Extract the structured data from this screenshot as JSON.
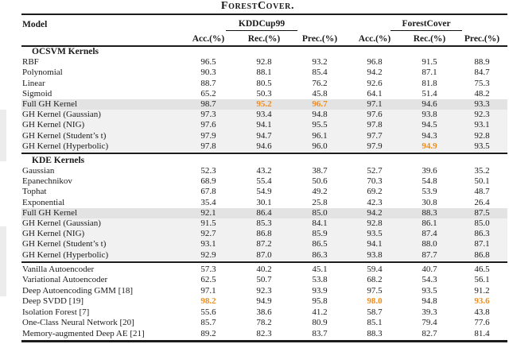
{
  "caption": "ForestCover.",
  "accent_orange": "#ef8c1d",
  "shade_dark": "#e3e3e3",
  "shade_light": "#f1f1f1",
  "table": {
    "model_header": "Model",
    "groups": [
      {
        "label": "KDDCup99"
      },
      {
        "label": "ForestCover"
      }
    ],
    "subheaders": [
      "Acc.(%)",
      "Rec.(%)",
      "Prec.(%)",
      "Acc.(%)",
      "Rec.(%)",
      "Prec.(%)"
    ],
    "sections": [
      {
        "title": "OCSVM Kernels",
        "rows": [
          {
            "model": "RBF",
            "values": [
              "96.5",
              "92.8",
              "93.2",
              "96.8",
              "91.5",
              "88.9"
            ],
            "shade": "none",
            "orange": []
          },
          {
            "model": "Polynomial",
            "values": [
              "90.3",
              "88.1",
              "85.4",
              "94.2",
              "87.1",
              "84.7"
            ],
            "shade": "none",
            "orange": []
          },
          {
            "model": "Linear",
            "values": [
              "88.7",
              "80.5",
              "76.2",
              "92.6",
              "81.8",
              "75.3"
            ],
            "shade": "none",
            "orange": []
          },
          {
            "model": "Sigmoid",
            "values": [
              "65.2",
              "50.3",
              "45.8",
              "64.1",
              "51.4",
              "48.2"
            ],
            "shade": "none",
            "orange": []
          },
          {
            "model": "Full GH Kernel",
            "values": [
              "98.7",
              "95.2",
              "96.7",
              "97.1",
              "94.6",
              "93.3"
            ],
            "shade": "dark",
            "orange": [
              1,
              2
            ]
          },
          {
            "model": "GH Kernel (Gaussian)",
            "values": [
              "97.3",
              "93.4",
              "94.8",
              "97.6",
              "93.8",
              "92.3"
            ],
            "shade": "light",
            "orange": []
          },
          {
            "model": "GH Kernel (NIG)",
            "values": [
              "97.6",
              "94.1",
              "95.5",
              "97.8",
              "94.5",
              "93.1"
            ],
            "shade": "light",
            "orange": []
          },
          {
            "model": "GH Kernel (Student’s t)",
            "values": [
              "97.9",
              "94.7",
              "96.1",
              "97.7",
              "94.3",
              "92.8"
            ],
            "shade": "light",
            "orange": []
          },
          {
            "model": "GH Kernel (Hyperbolic)",
            "values": [
              "97.8",
              "94.6",
              "96.0",
              "97.9",
              "94.9",
              "93.5"
            ],
            "shade": "light",
            "orange": [
              4
            ]
          }
        ]
      },
      {
        "title": "KDE Kernels",
        "rows": [
          {
            "model": "Gaussian",
            "values": [
              "52.3",
              "43.2",
              "38.7",
              "52.7",
              "39.6",
              "35.2"
            ],
            "shade": "none",
            "orange": []
          },
          {
            "model": "Epanechnikov",
            "values": [
              "68.9",
              "55.4",
              "50.6",
              "70.3",
              "54.8",
              "50.1"
            ],
            "shade": "none",
            "orange": []
          },
          {
            "model": "Tophat",
            "values": [
              "67.8",
              "54.9",
              "49.2",
              "69.2",
              "53.9",
              "48.7"
            ],
            "shade": "none",
            "orange": []
          },
          {
            "model": "Exponential",
            "values": [
              "35.4",
              "30.1",
              "25.8",
              "42.3",
              "30.8",
              "26.4"
            ],
            "shade": "none",
            "orange": []
          },
          {
            "model": "Full GH Kernel",
            "values": [
              "92.1",
              "86.4",
              "85.0",
              "94.2",
              "88.3",
              "87.5"
            ],
            "shade": "dark",
            "orange": []
          },
          {
            "model": "GH Kernel (Gaussian)",
            "values": [
              "91.5",
              "85.3",
              "84.1",
              "92.8",
              "86.1",
              "85.0"
            ],
            "shade": "light",
            "orange": []
          },
          {
            "model": "GH Kernel (NIG)",
            "values": [
              "92.7",
              "86.8",
              "85.9",
              "93.5",
              "87.4",
              "86.3"
            ],
            "shade": "light",
            "orange": []
          },
          {
            "model": "GH Kernel (Student’s t)",
            "values": [
              "93.1",
              "87.2",
              "86.5",
              "94.1",
              "88.0",
              "87.1"
            ],
            "shade": "light",
            "orange": []
          },
          {
            "model": "GH Kernel (Hyperbolic)",
            "values": [
              "92.9",
              "87.0",
              "86.3",
              "93.8",
              "87.7",
              "86.8"
            ],
            "shade": "light",
            "orange": []
          }
        ]
      },
      {
        "title": null,
        "rows": [
          {
            "model": "Vanilla Autoencoder",
            "values": [
              "57.3",
              "40.2",
              "45.1",
              "59.4",
              "40.7",
              "46.5"
            ],
            "shade": "none",
            "orange": []
          },
          {
            "model": "Variational Autoencoder",
            "values": [
              "62.5",
              "50.7",
              "53.8",
              "68.2",
              "54.3",
              "56.1"
            ],
            "shade": "none",
            "orange": []
          },
          {
            "model": "Deep Autoencoding GMM [18]",
            "values": [
              "97.1",
              "92.3",
              "93.9",
              "97.5",
              "93.5",
              "91.2"
            ],
            "shade": "none",
            "orange": []
          },
          {
            "model": "Deep SVDD [19]",
            "values": [
              "98.2",
              "94.9",
              "95.8",
              "98.0",
              "94.8",
              "93.6"
            ],
            "shade": "none",
            "orange": [
              0,
              3,
              5
            ]
          },
          {
            "model": "Isolation Forest [7]",
            "values": [
              "55.6",
              "38.6",
              "41.2",
              "58.7",
              "39.3",
              "43.8"
            ],
            "shade": "none",
            "orange": []
          },
          {
            "model": "One-Class Neural Network [20]",
            "values": [
              "85.7",
              "78.2",
              "80.9",
              "85.1",
              "79.4",
              "77.6"
            ],
            "shade": "none",
            "orange": []
          },
          {
            "model": "Memory-augmented Deep AE [21]",
            "values": [
              "89.2",
              "82.3",
              "83.7",
              "88.3",
              "82.7",
              "81.4"
            ],
            "shade": "none",
            "orange": []
          }
        ]
      }
    ]
  }
}
